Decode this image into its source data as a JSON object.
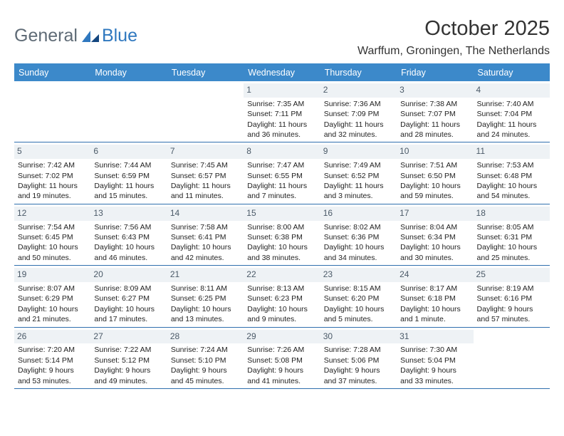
{
  "brand": {
    "text1": "General",
    "text2": "Blue"
  },
  "title": "October 2025",
  "location": "Warffum, Groningen, The Netherlands",
  "colors": {
    "header_bg": "#3c89ca",
    "header_text": "#ffffff",
    "daynum_bg": "#eef2f5",
    "daynum_text": "#4b5a68",
    "rule": "#2f6fae",
    "brand_gray": "#5f6b76",
    "brand_blue": "#2f78bf"
  },
  "days": [
    "Sunday",
    "Monday",
    "Tuesday",
    "Wednesday",
    "Thursday",
    "Friday",
    "Saturday"
  ],
  "weeks": [
    [
      null,
      null,
      null,
      {
        "n": "1",
        "sunrise": "7:35 AM",
        "sunset": "7:11 PM",
        "daylight": "11 hours and 36 minutes."
      },
      {
        "n": "2",
        "sunrise": "7:36 AM",
        "sunset": "7:09 PM",
        "daylight": "11 hours and 32 minutes."
      },
      {
        "n": "3",
        "sunrise": "7:38 AM",
        "sunset": "7:07 PM",
        "daylight": "11 hours and 28 minutes."
      },
      {
        "n": "4",
        "sunrise": "7:40 AM",
        "sunset": "7:04 PM",
        "daylight": "11 hours and 24 minutes."
      }
    ],
    [
      {
        "n": "5",
        "sunrise": "7:42 AM",
        "sunset": "7:02 PM",
        "daylight": "11 hours and 19 minutes."
      },
      {
        "n": "6",
        "sunrise": "7:44 AM",
        "sunset": "6:59 PM",
        "daylight": "11 hours and 15 minutes."
      },
      {
        "n": "7",
        "sunrise": "7:45 AM",
        "sunset": "6:57 PM",
        "daylight": "11 hours and 11 minutes."
      },
      {
        "n": "8",
        "sunrise": "7:47 AM",
        "sunset": "6:55 PM",
        "daylight": "11 hours and 7 minutes."
      },
      {
        "n": "9",
        "sunrise": "7:49 AM",
        "sunset": "6:52 PM",
        "daylight": "11 hours and 3 minutes."
      },
      {
        "n": "10",
        "sunrise": "7:51 AM",
        "sunset": "6:50 PM",
        "daylight": "10 hours and 59 minutes."
      },
      {
        "n": "11",
        "sunrise": "7:53 AM",
        "sunset": "6:48 PM",
        "daylight": "10 hours and 54 minutes."
      }
    ],
    [
      {
        "n": "12",
        "sunrise": "7:54 AM",
        "sunset": "6:45 PM",
        "daylight": "10 hours and 50 minutes."
      },
      {
        "n": "13",
        "sunrise": "7:56 AM",
        "sunset": "6:43 PM",
        "daylight": "10 hours and 46 minutes."
      },
      {
        "n": "14",
        "sunrise": "7:58 AM",
        "sunset": "6:41 PM",
        "daylight": "10 hours and 42 minutes."
      },
      {
        "n": "15",
        "sunrise": "8:00 AM",
        "sunset": "6:38 PM",
        "daylight": "10 hours and 38 minutes."
      },
      {
        "n": "16",
        "sunrise": "8:02 AM",
        "sunset": "6:36 PM",
        "daylight": "10 hours and 34 minutes."
      },
      {
        "n": "17",
        "sunrise": "8:04 AM",
        "sunset": "6:34 PM",
        "daylight": "10 hours and 30 minutes."
      },
      {
        "n": "18",
        "sunrise": "8:05 AM",
        "sunset": "6:31 PM",
        "daylight": "10 hours and 25 minutes."
      }
    ],
    [
      {
        "n": "19",
        "sunrise": "8:07 AM",
        "sunset": "6:29 PM",
        "daylight": "10 hours and 21 minutes."
      },
      {
        "n": "20",
        "sunrise": "8:09 AM",
        "sunset": "6:27 PM",
        "daylight": "10 hours and 17 minutes."
      },
      {
        "n": "21",
        "sunrise": "8:11 AM",
        "sunset": "6:25 PM",
        "daylight": "10 hours and 13 minutes."
      },
      {
        "n": "22",
        "sunrise": "8:13 AM",
        "sunset": "6:23 PM",
        "daylight": "10 hours and 9 minutes."
      },
      {
        "n": "23",
        "sunrise": "8:15 AM",
        "sunset": "6:20 PM",
        "daylight": "10 hours and 5 minutes."
      },
      {
        "n": "24",
        "sunrise": "8:17 AM",
        "sunset": "6:18 PM",
        "daylight": "10 hours and 1 minute."
      },
      {
        "n": "25",
        "sunrise": "8:19 AM",
        "sunset": "6:16 PM",
        "daylight": "9 hours and 57 minutes."
      }
    ],
    [
      {
        "n": "26",
        "sunrise": "7:20 AM",
        "sunset": "5:14 PM",
        "daylight": "9 hours and 53 minutes."
      },
      {
        "n": "27",
        "sunrise": "7:22 AM",
        "sunset": "5:12 PM",
        "daylight": "9 hours and 49 minutes."
      },
      {
        "n": "28",
        "sunrise": "7:24 AM",
        "sunset": "5:10 PM",
        "daylight": "9 hours and 45 minutes."
      },
      {
        "n": "29",
        "sunrise": "7:26 AM",
        "sunset": "5:08 PM",
        "daylight": "9 hours and 41 minutes."
      },
      {
        "n": "30",
        "sunrise": "7:28 AM",
        "sunset": "5:06 PM",
        "daylight": "9 hours and 37 minutes."
      },
      {
        "n": "31",
        "sunrise": "7:30 AM",
        "sunset": "5:04 PM",
        "daylight": "9 hours and 33 minutes."
      },
      null
    ]
  ],
  "labels": {
    "sunrise": "Sunrise:",
    "sunset": "Sunset:",
    "daylight": "Daylight:"
  }
}
